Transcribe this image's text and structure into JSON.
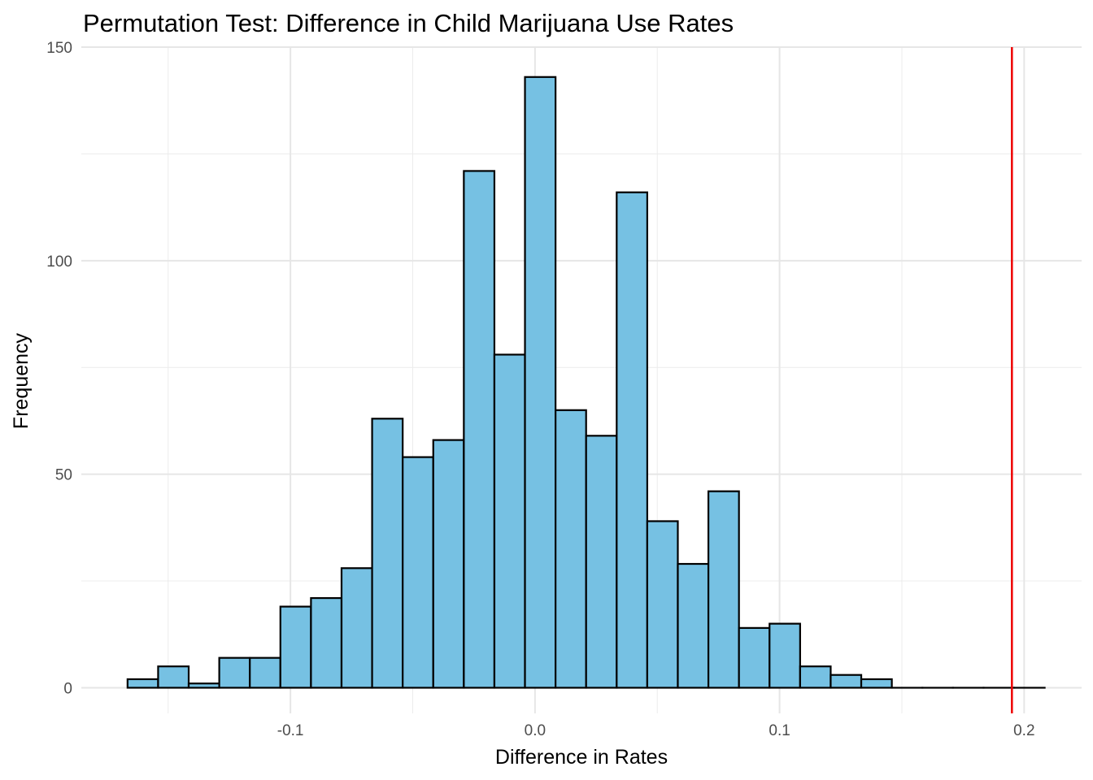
{
  "chart_data": {
    "type": "bar",
    "title": "Permutation Test: Difference in Child Marijuana Use Rates",
    "xlabel": "Difference in Rates",
    "ylabel": "Frequency",
    "xlim": [
      -0.1855,
      0.2235
    ],
    "ylim": [
      -6,
      150
    ],
    "x_ticks": [
      -0.1,
      0.0,
      0.1,
      0.2
    ],
    "x_tick_labels": [
      "-0.1",
      "0.0",
      "0.1",
      "0.2"
    ],
    "y_ticks": [
      0,
      50,
      100,
      150
    ],
    "y_tick_labels": [
      "0",
      "50",
      "100",
      "150"
    ],
    "grid": true,
    "bin_width": 0.0125,
    "bins": [
      {
        "x0": -0.1666,
        "x1": -0.1541,
        "count": 2
      },
      {
        "x0": -0.1541,
        "x1": -0.1416,
        "count": 5
      },
      {
        "x0": -0.1416,
        "x1": -0.1291,
        "count": 1
      },
      {
        "x0": -0.1291,
        "x1": -0.1166,
        "count": 7
      },
      {
        "x0": -0.1166,
        "x1": -0.1041,
        "count": 7
      },
      {
        "x0": -0.1041,
        "x1": -0.0916,
        "count": 19
      },
      {
        "x0": -0.0916,
        "x1": -0.0791,
        "count": 21
      },
      {
        "x0": -0.0791,
        "x1": -0.0666,
        "count": 28
      },
      {
        "x0": -0.0666,
        "x1": -0.0541,
        "count": 63
      },
      {
        "x0": -0.0541,
        "x1": -0.0416,
        "count": 54
      },
      {
        "x0": -0.0416,
        "x1": -0.0291,
        "count": 58
      },
      {
        "x0": -0.0291,
        "x1": -0.0166,
        "count": 121
      },
      {
        "x0": -0.0166,
        "x1": -0.0041,
        "count": 78
      },
      {
        "x0": -0.0041,
        "x1": 0.0084,
        "count": 143
      },
      {
        "x0": 0.0084,
        "x1": 0.0209,
        "count": 65
      },
      {
        "x0": 0.0209,
        "x1": 0.0334,
        "count": 59
      },
      {
        "x0": 0.0334,
        "x1": 0.0459,
        "count": 116
      },
      {
        "x0": 0.0459,
        "x1": 0.0584,
        "count": 39
      },
      {
        "x0": 0.0584,
        "x1": 0.0709,
        "count": 29
      },
      {
        "x0": 0.0709,
        "x1": 0.0834,
        "count": 46
      },
      {
        "x0": 0.0834,
        "x1": 0.0959,
        "count": 14
      },
      {
        "x0": 0.0959,
        "x1": 0.1084,
        "count": 15
      },
      {
        "x0": 0.1084,
        "x1": 0.1209,
        "count": 5
      },
      {
        "x0": 0.1209,
        "x1": 0.1334,
        "count": 3
      },
      {
        "x0": 0.1334,
        "x1": 0.1459,
        "count": 2
      },
      {
        "x0": 0.1459,
        "x1": 0.1584,
        "count": 0
      },
      {
        "x0": 0.1584,
        "x1": 0.1709,
        "count": 0
      },
      {
        "x0": 0.1709,
        "x1": 0.1834,
        "count": 0
      },
      {
        "x0": 0.1834,
        "x1": 0.1959,
        "count": 0
      },
      {
        "x0": 0.1959,
        "x1": 0.2084,
        "count": 0
      }
    ],
    "reference_line": {
      "x": 0.195,
      "color": "#ee0000"
    },
    "bar_fill": "#76c1e3",
    "bar_outline": "#000000"
  }
}
